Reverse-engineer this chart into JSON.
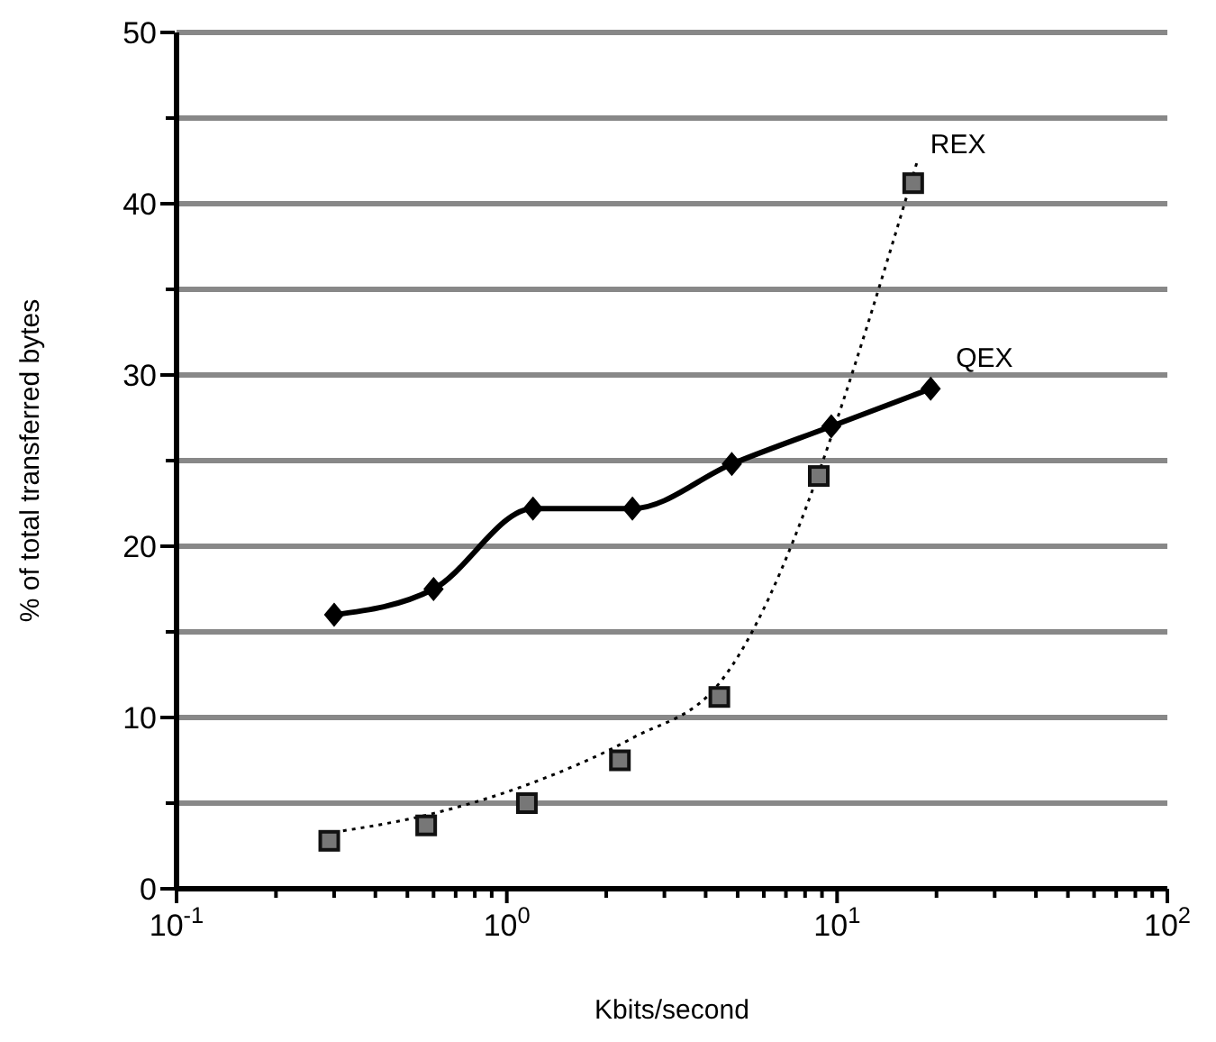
{
  "chart_data": {
    "type": "line",
    "xlabel": "Kbits/second",
    "ylabel": "% of total transferred bytes",
    "log": "x",
    "xlim": [
      0.1,
      100
    ],
    "ylim": [
      0,
      50
    ],
    "xticks": [
      {
        "value": 0.1,
        "label": "10$^{-1}$"
      },
      {
        "value": 0.2,
        "label": null
      },
      {
        "value": 0.3,
        "label": null
      },
      {
        "value": 0.4,
        "label": null
      },
      {
        "value": 0.5,
        "label": null
      },
      {
        "value": 0.6,
        "label": null
      },
      {
        "value": 0.7,
        "label": null
      },
      {
        "value": 0.8,
        "label": null
      },
      {
        "value": 0.9,
        "label": null
      },
      {
        "value": 1,
        "label": "10$^{0}$"
      },
      {
        "value": 2,
        "label": null
      },
      {
        "value": 3,
        "label": null
      },
      {
        "value": 4,
        "label": null
      },
      {
        "value": 5,
        "label": null
      },
      {
        "value": 6,
        "label": null
      },
      {
        "value": 7,
        "label": null
      },
      {
        "value": 8,
        "label": null
      },
      {
        "value": 9,
        "label": null
      },
      {
        "value": 10,
        "label": "10$^{1}$"
      },
      {
        "value": 20,
        "label": null
      },
      {
        "value": 30,
        "label": null
      },
      {
        "value": 40,
        "label": null
      },
      {
        "value": 50,
        "label": null
      },
      {
        "value": 60,
        "label": null
      },
      {
        "value": 70,
        "label": null
      },
      {
        "value": 80,
        "label": null
      },
      {
        "value": 90,
        "label": null
      },
      {
        "value": 100,
        "label": "10$^{2}$"
      }
    ],
    "yticks": [
      0,
      {
        "value": 5,
        "label": null
      },
      10,
      {
        "value": 15,
        "label": null
      },
      20,
      {
        "value": 25,
        "label": null
      },
      30,
      {
        "value": 35,
        "label": null
      },
      40,
      {
        "value": 45,
        "label": null
      },
      50
    ],
    "grid": "y",
    "legend": false,
    "series": [
      {
        "name": "QEX",
        "color": "#000000",
        "marker": "diamond",
        "line_style": "solid",
        "x": [
          0.3,
          0.6,
          1.2,
          2.4,
          4.8,
          9.6,
          19.2
        ],
        "values": [
          16,
          17.5,
          22.2,
          22.2,
          24.8,
          27,
          29.2
        ]
      },
      {
        "name": "REX",
        "type": "scatter",
        "color": "#777777",
        "marker": "square",
        "x": [
          0.29,
          0.57,
          1.15,
          2.2,
          4.4,
          8.8,
          17
        ],
        "values": [
          2.8,
          3.7,
          5,
          7.5,
          11.2,
          24.1,
          41.2
        ]
      },
      {
        "type": "line",
        "color": "#000000",
        "marker": "none",
        "line_style": "dotted",
        "x": [
          0.3,
          0.6,
          1.2,
          2.4,
          4.4,
          17.5
        ],
        "values": [
          3.3,
          4.4,
          6.2,
          8.8,
          12,
          42.5
        ]
      }
    ]
  }
}
